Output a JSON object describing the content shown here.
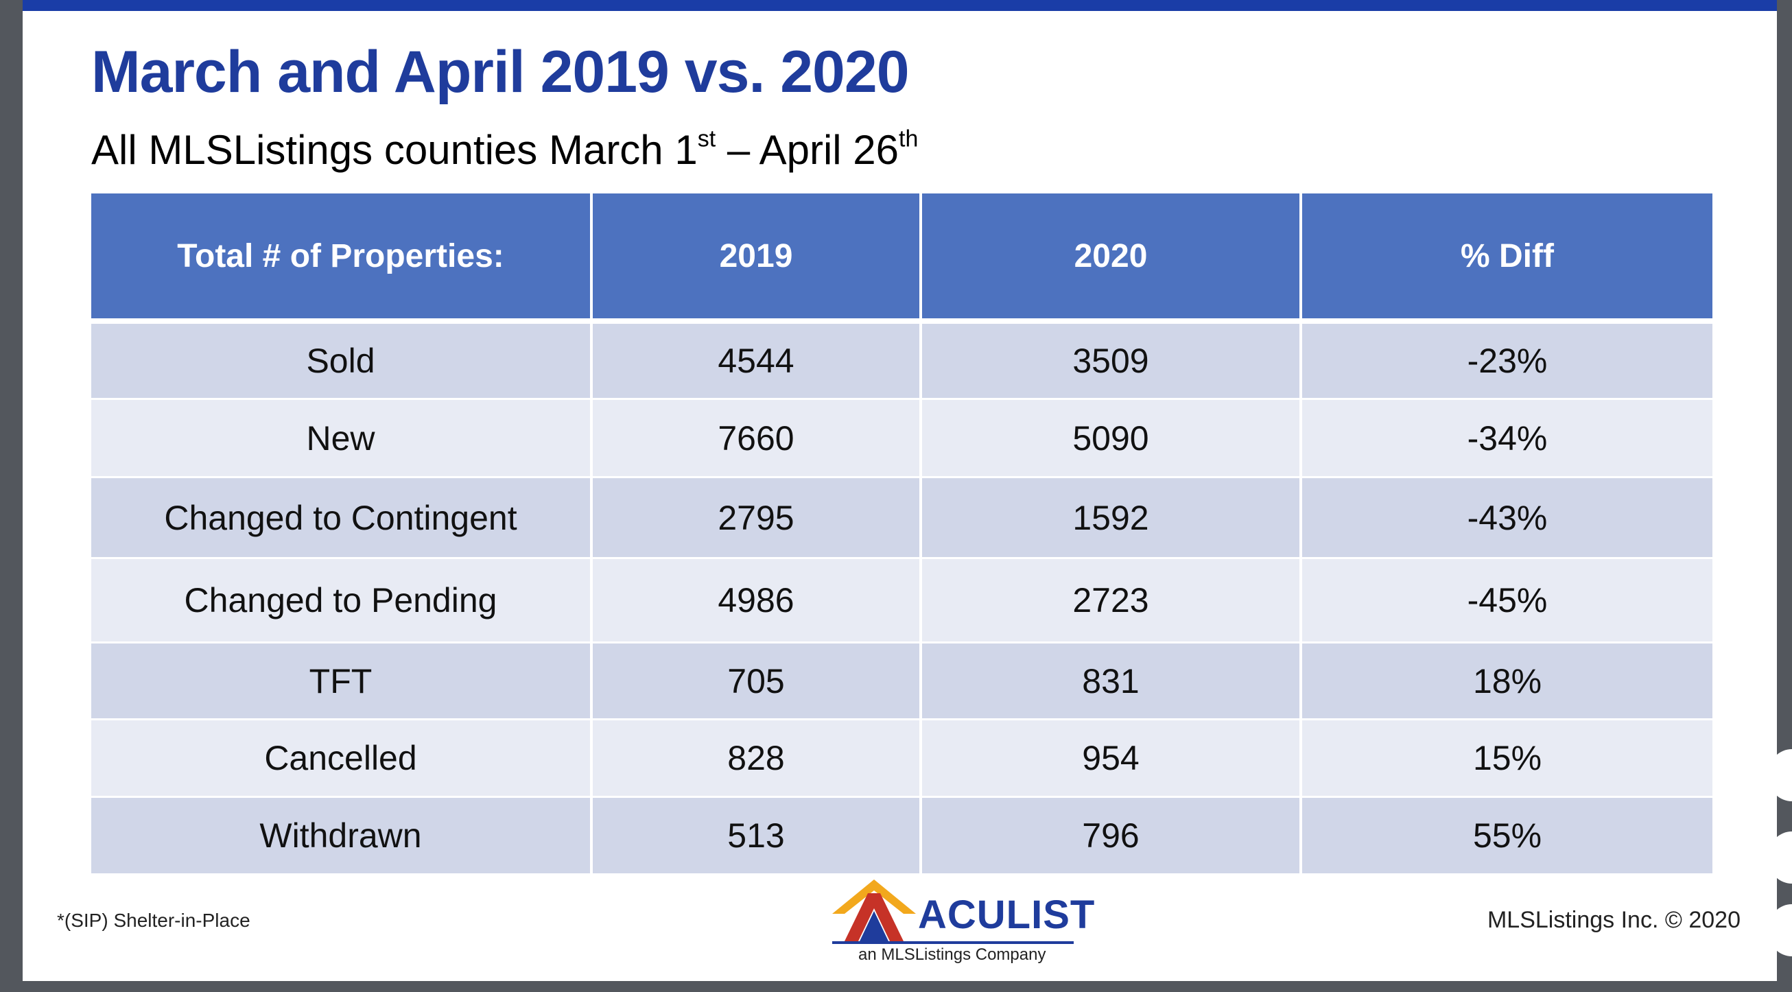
{
  "slide": {
    "title": "March and April 2019 vs. 2020",
    "subtitle": {
      "part1": "All MLSListings counties March 1",
      "sup1": "st",
      "part2": " – April 26",
      "sup2": "th"
    }
  },
  "table": {
    "headers": [
      "Total # of Properties:",
      "2019",
      "2020",
      "% Diff"
    ],
    "rows": [
      [
        "Sold",
        "4544",
        "3509",
        "-23%"
      ],
      [
        "New",
        "7660",
        "5090",
        "-34%"
      ],
      [
        "Changed to Contingent",
        "2795",
        "1592",
        "-43%"
      ],
      [
        "Changed to Pending",
        "4986",
        "2723",
        "-45%"
      ],
      [
        "TFT",
        "705",
        "831",
        "18%"
      ],
      [
        "Cancelled",
        "828",
        "954",
        "15%"
      ],
      [
        "Withdrawn",
        "513",
        "796",
        "55%"
      ]
    ]
  },
  "footer": {
    "footnote": "*(SIP) Shelter-in-Place",
    "copyright": "MLSListings Inc. © 2020",
    "logo": {
      "wordmark": "ACULIST",
      "tagline": "an MLSListings Company"
    }
  },
  "colors": {
    "accent": "#1f3c9c",
    "header_fill": "#4d72bf",
    "row_odd": "#d0d6e8",
    "row_even": "#e8ebf4"
  }
}
